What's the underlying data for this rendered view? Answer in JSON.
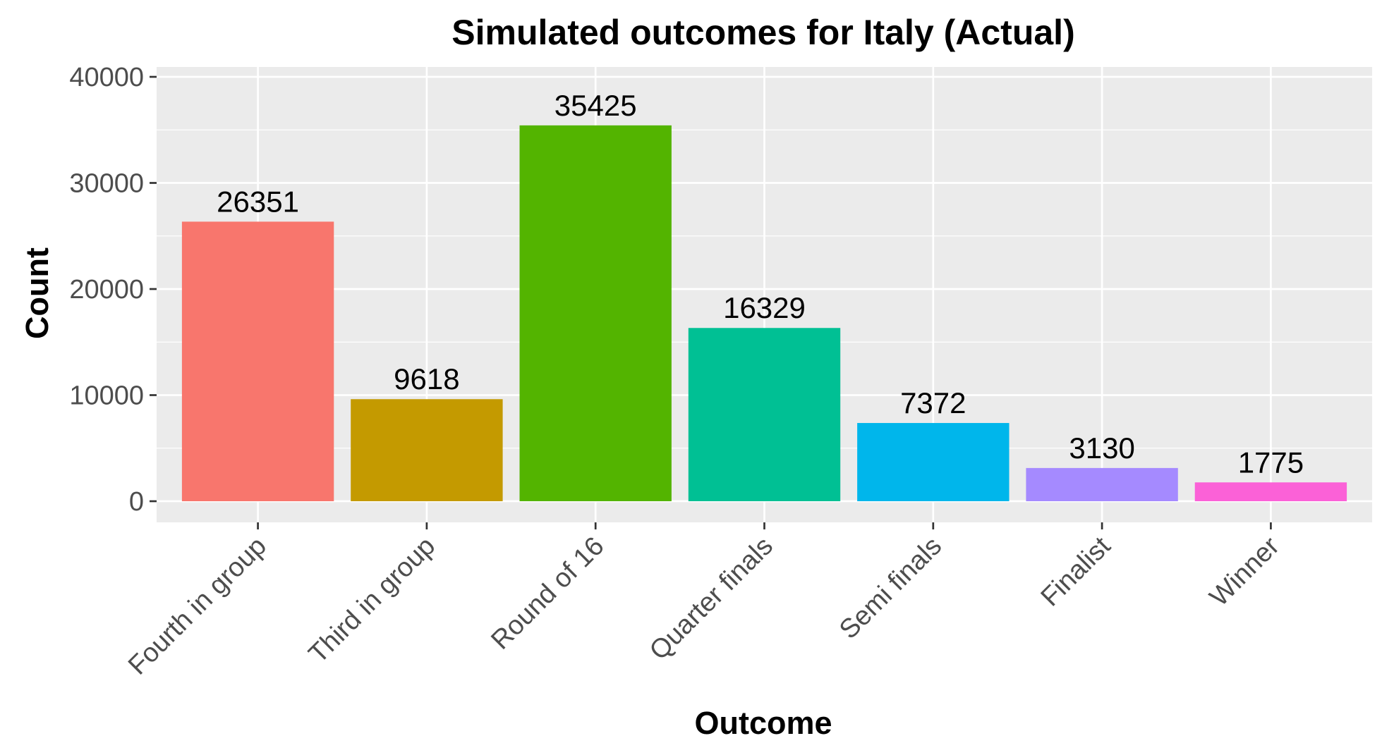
{
  "chart_data": {
    "type": "bar",
    "title": "Simulated outcomes for Italy (Actual)",
    "xlabel": "Outcome",
    "ylabel": "Count",
    "categories": [
      "Fourth in group",
      "Third in group",
      "Round of 16",
      "Quarter finals",
      "Semi finals",
      "Finalist",
      "Winner"
    ],
    "values": [
      26351,
      9618,
      35425,
      16329,
      7372,
      3130,
      1775
    ],
    "data_labels": [
      "26351",
      "9618",
      "35425",
      "16329",
      "7372",
      "3130",
      "1775"
    ],
    "colors": [
      "#F8766D",
      "#C49A00",
      "#53B400",
      "#00C094",
      "#00B6EB",
      "#A58AFF",
      "#FB61D7"
    ],
    "ylim": [
      0,
      40000
    ],
    "yticks": [
      0,
      10000,
      20000,
      30000,
      40000
    ],
    "ytick_labels": [
      "0",
      "10000",
      "20000",
      "30000",
      "40000"
    ],
    "grid": true,
    "legend": "none",
    "panel_background": "#EBEBEB",
    "grid_color": "#FFFFFF"
  }
}
